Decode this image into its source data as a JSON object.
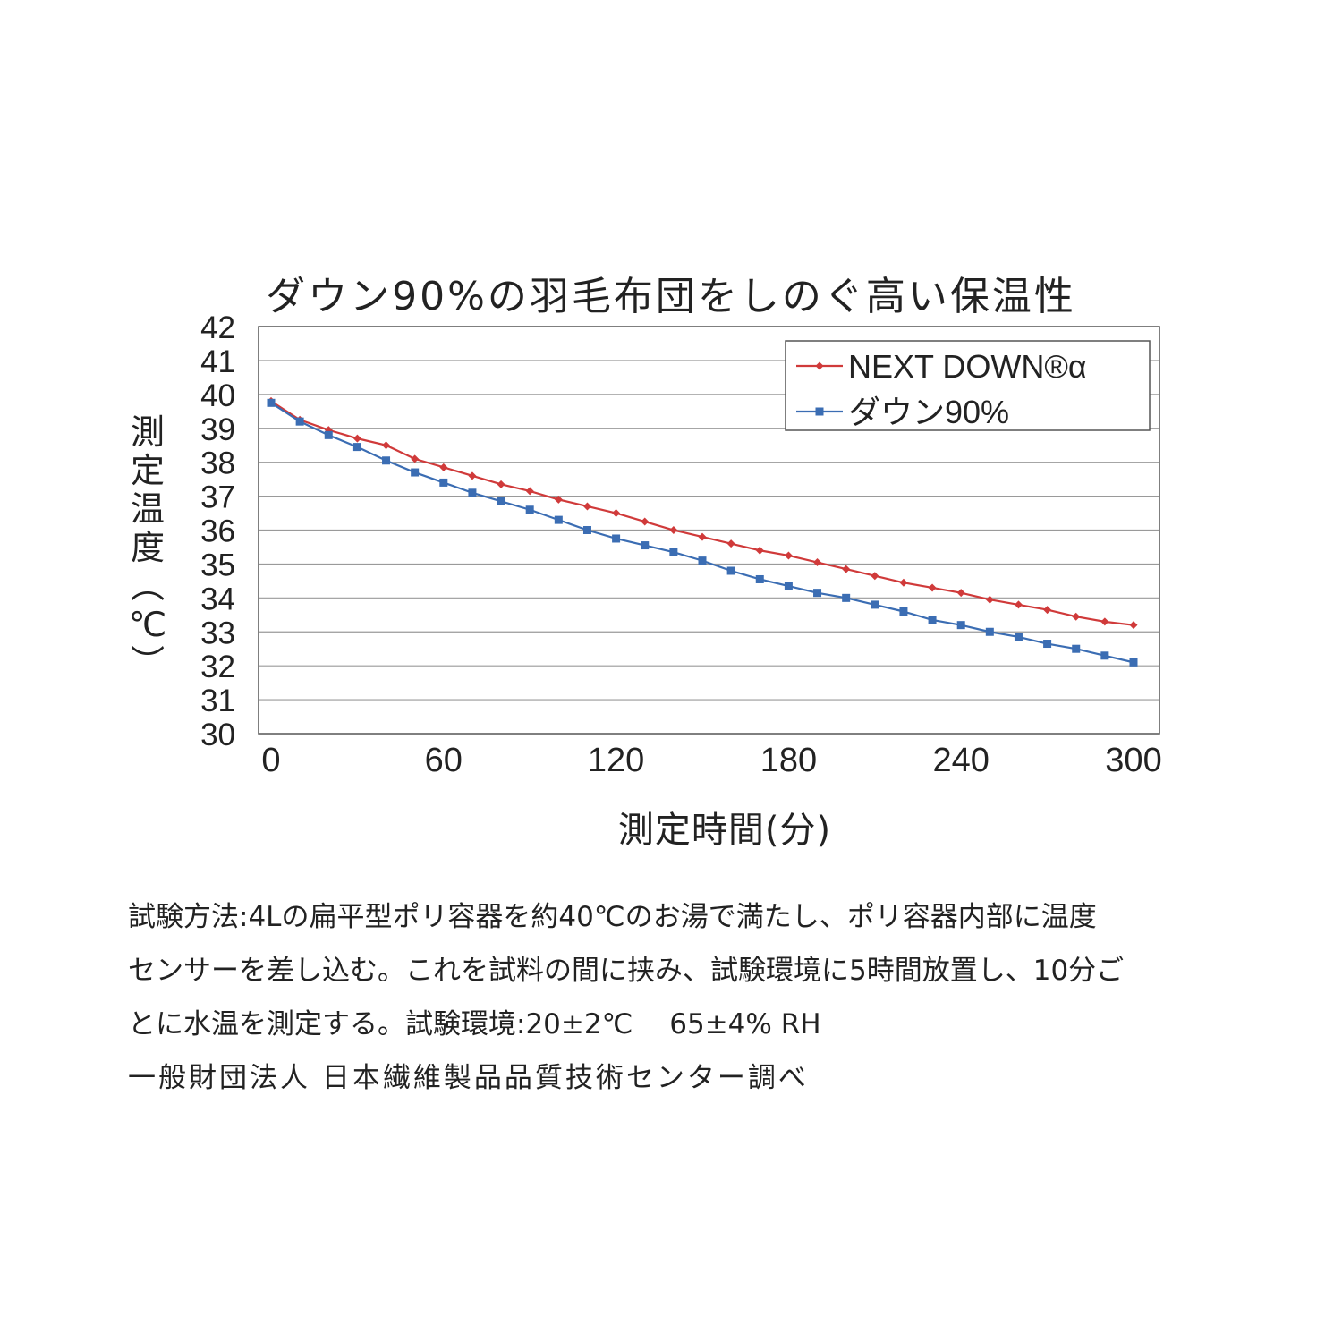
{
  "chart_data": {
    "type": "line",
    "title": "ダウン90%の羽毛布団をしのぐ高い保温性",
    "xlabel": "測定時間(分)",
    "ylabel": "測定温度(℃)",
    "xlim": [
      0,
      305
    ],
    "ylim": [
      30,
      42
    ],
    "x_ticks": [
      "0",
      "60",
      "120",
      "180",
      "240",
      "300"
    ],
    "x_tick_values": [
      0,
      60,
      120,
      180,
      240,
      300
    ],
    "y_ticks": [
      "42",
      "41",
      "40",
      "39",
      "38",
      "37",
      "36",
      "35",
      "34",
      "33",
      "32",
      "31",
      "30"
    ],
    "y_tick_values": [
      42,
      41,
      40,
      39,
      38,
      37,
      36,
      35,
      34,
      33,
      32,
      31,
      30
    ],
    "grid": true,
    "legend_position": "top-right",
    "x": [
      0,
      10,
      20,
      30,
      40,
      50,
      60,
      70,
      80,
      90,
      100,
      110,
      120,
      130,
      140,
      150,
      160,
      170,
      180,
      190,
      200,
      210,
      220,
      230,
      240,
      250,
      260,
      270,
      280,
      290,
      300
    ],
    "series": [
      {
        "name": "NEXT DOWN®α",
        "color": "#d03a3a",
        "marker": "diamond",
        "values": [
          39.8,
          39.25,
          38.95,
          38.7,
          38.5,
          38.1,
          37.85,
          37.6,
          37.35,
          37.15,
          36.9,
          36.7,
          36.5,
          36.25,
          36.0,
          35.8,
          35.6,
          35.4,
          35.25,
          35.05,
          34.85,
          34.65,
          34.45,
          34.3,
          34.15,
          33.95,
          33.8,
          33.65,
          33.45,
          33.3,
          33.2
        ]
      },
      {
        "name": "ダウン90%",
        "color": "#3b6db3",
        "marker": "square",
        "values": [
          39.75,
          39.2,
          38.8,
          38.45,
          38.05,
          37.7,
          37.4,
          37.1,
          36.85,
          36.6,
          36.3,
          36.0,
          35.75,
          35.55,
          35.35,
          35.1,
          34.8,
          34.55,
          34.35,
          34.15,
          34.0,
          33.8,
          33.6,
          33.35,
          33.2,
          33.0,
          32.85,
          32.65,
          32.5,
          32.3,
          32.1
        ]
      }
    ]
  },
  "notes": {
    "line1": "試験方法:4Lの扁平型ポリ容器を約40℃のお湯で満たし、ポリ容器内部に温度",
    "line2": "センサーを差し込む。これを試料の間に挟み、試験環境に5時間放置し、10分ご",
    "line3": "とに水温を測定する。試験環境:20±2℃　 65±4% RH",
    "source": "一般財団法人 日本繊維製品品質技術センター調べ"
  }
}
